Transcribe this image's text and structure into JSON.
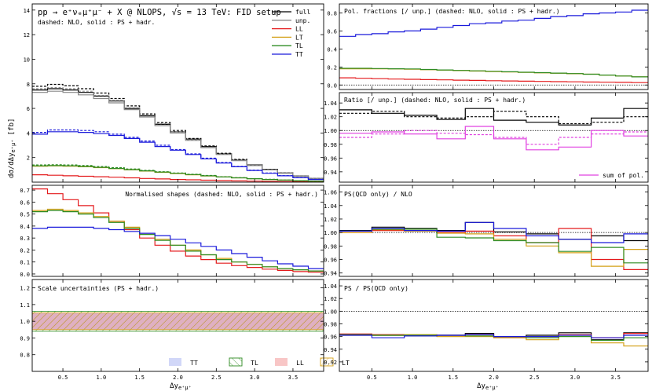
{
  "figure": {
    "y_main_label": "dσ/dΔy",
    "y_main_sub": "e⁺μ⁺",
    "y_main_unit": " [fb]",
    "x_label": "Δy",
    "x_sub": "e⁺μ⁺"
  },
  "colors": {
    "full": "#000000",
    "unp": "#888888",
    "LL": "#e41a1c",
    "LT": "#d4a017",
    "TL": "#2e8b22",
    "TT": "#1a1adb",
    "sum": "#e040e0"
  },
  "chart_data": [
    {
      "id": "main",
      "type": "line",
      "step": true,
      "title": "pp → e⁺νₑμ⁺μ⁻ + X @ NLOPS, √s = 13 TeV: FID setup",
      "subtitle": "dashed: NLO, solid : PS + hadr.",
      "xlim": [
        0.1,
        3.9
      ],
      "ylim": [
        0,
        14.5
      ],
      "yticks": [
        2,
        4,
        6,
        8,
        10,
        12,
        14
      ],
      "legend": [
        "full",
        "unp.",
        "LL",
        "LT",
        "TL",
        "TT"
      ],
      "x": [
        0.2,
        0.4,
        0.6,
        0.8,
        1.0,
        1.2,
        1.4,
        1.6,
        1.8,
        2.0,
        2.2,
        2.4,
        2.6,
        2.8,
        3.0,
        3.2,
        3.4,
        3.6,
        3.8
      ],
      "series": [
        {
          "name": "full solid",
          "key": "full",
          "dash": false,
          "values": [
            7.5,
            7.6,
            7.5,
            7.3,
            7.0,
            6.6,
            6.0,
            5.4,
            4.7,
            4.1,
            3.5,
            2.9,
            2.3,
            1.8,
            1.4,
            1.05,
            0.75,
            0.5,
            0.3
          ]
        },
        {
          "name": "full dashed",
          "key": "full",
          "dash": true,
          "values": [
            7.8,
            7.95,
            7.85,
            7.6,
            7.25,
            6.8,
            6.2,
            5.55,
            4.85,
            4.2,
            3.55,
            2.95,
            2.35,
            1.85,
            1.4,
            1.05,
            0.75,
            0.5,
            0.3
          ]
        },
        {
          "name": "unp. solid",
          "key": "unp",
          "dash": false,
          "values": [
            7.3,
            7.4,
            7.3,
            7.1,
            6.8,
            6.45,
            5.9,
            5.3,
            4.6,
            4.0,
            3.4,
            2.8,
            2.25,
            1.75,
            1.35,
            1.0,
            0.72,
            0.48,
            0.29
          ]
        },
        {
          "name": "unp. dashed",
          "key": "unp",
          "dash": true,
          "values": [
            7.6,
            7.7,
            7.6,
            7.4,
            7.05,
            6.65,
            6.05,
            5.45,
            4.75,
            4.1,
            3.45,
            2.85,
            2.28,
            1.78,
            1.37,
            1.02,
            0.73,
            0.48,
            0.29
          ]
        },
        {
          "name": "LL",
          "key": "LL",
          "dash": false,
          "values": [
            0.6,
            0.56,
            0.52,
            0.48,
            0.44,
            0.4,
            0.35,
            0.3,
            0.26,
            0.22,
            0.19,
            0.16,
            0.13,
            0.1,
            0.08,
            0.06,
            0.05,
            0.04,
            0.03
          ]
        },
        {
          "name": "LT",
          "key": "LT",
          "dash": false,
          "values": [
            1.3,
            1.32,
            1.3,
            1.25,
            1.18,
            1.1,
            1.0,
            0.9,
            0.8,
            0.7,
            0.6,
            0.5,
            0.42,
            0.35,
            0.28,
            0.22,
            0.17,
            0.12,
            0.08
          ]
        },
        {
          "name": "TL solid",
          "key": "TL",
          "dash": false,
          "values": [
            1.33,
            1.35,
            1.33,
            1.28,
            1.2,
            1.12,
            1.02,
            0.92,
            0.82,
            0.72,
            0.62,
            0.52,
            0.43,
            0.35,
            0.28,
            0.22,
            0.17,
            0.12,
            0.08
          ]
        },
        {
          "name": "TL dashed",
          "key": "TL",
          "dash": true,
          "values": [
            1.4,
            1.42,
            1.4,
            1.35,
            1.27,
            1.18,
            1.07,
            0.96,
            0.85,
            0.75,
            0.64,
            0.54,
            0.44,
            0.36,
            0.29,
            0.23,
            0.17,
            0.12,
            0.08
          ]
        },
        {
          "name": "TT solid",
          "key": "TT",
          "dash": false,
          "values": [
            3.9,
            4.1,
            4.1,
            4.05,
            3.95,
            3.8,
            3.55,
            3.25,
            2.9,
            2.6,
            2.25,
            1.9,
            1.55,
            1.25,
            0.95,
            0.72,
            0.52,
            0.36,
            0.22
          ]
        },
        {
          "name": "TT dashed",
          "key": "TT",
          "dash": true,
          "values": [
            4.05,
            4.25,
            4.25,
            4.2,
            4.1,
            3.9,
            3.65,
            3.35,
            3.0,
            2.65,
            2.3,
            1.95,
            1.6,
            1.28,
            0.98,
            0.74,
            0.53,
            0.37,
            0.23
          ]
        }
      ]
    },
    {
      "id": "norm",
      "type": "line",
      "step": true,
      "title": "Normalised shapes (dashed: NLO, solid : PS + hadr.)",
      "xlim": [
        0.1,
        3.9
      ],
      "ylim": [
        -0.02,
        0.74
      ],
      "yticks": [
        0.0,
        0.1,
        0.2,
        0.3,
        0.4,
        0.5,
        0.6,
        0.7
      ],
      "x": [
        0.2,
        0.4,
        0.6,
        0.8,
        1.0,
        1.2,
        1.4,
        1.6,
        1.8,
        2.0,
        2.2,
        2.4,
        2.6,
        2.8,
        3.0,
        3.2,
        3.4,
        3.6,
        3.8
      ],
      "series": [
        {
          "name": "LL",
          "key": "LL",
          "dash": false,
          "values": [
            0.71,
            0.67,
            0.62,
            0.57,
            0.51,
            0.44,
            0.37,
            0.3,
            0.24,
            0.19,
            0.15,
            0.12,
            0.09,
            0.07,
            0.055,
            0.04,
            0.03,
            0.02,
            0.015
          ]
        },
        {
          "name": "LT",
          "key": "LT",
          "dash": false,
          "values": [
            0.53,
            0.54,
            0.53,
            0.51,
            0.48,
            0.44,
            0.39,
            0.34,
            0.29,
            0.24,
            0.2,
            0.16,
            0.13,
            0.1,
            0.08,
            0.06,
            0.045,
            0.035,
            0.025
          ]
        },
        {
          "name": "TL",
          "key": "TL",
          "dash": false,
          "values": [
            0.52,
            0.53,
            0.52,
            0.5,
            0.47,
            0.43,
            0.38,
            0.33,
            0.28,
            0.24,
            0.19,
            0.16,
            0.12,
            0.1,
            0.08,
            0.06,
            0.045,
            0.035,
            0.025
          ]
        },
        {
          "name": "TT",
          "key": "TT",
          "dash": false,
          "values": [
            0.38,
            0.39,
            0.39,
            0.39,
            0.38,
            0.37,
            0.355,
            0.34,
            0.32,
            0.29,
            0.26,
            0.23,
            0.2,
            0.17,
            0.14,
            0.11,
            0.085,
            0.065,
            0.045
          ]
        }
      ]
    },
    {
      "id": "scale",
      "type": "area",
      "step": true,
      "title": "Scale uncertainties (PS + hadr.)",
      "xlim": [
        0.1,
        3.9
      ],
      "ylim": [
        0.7,
        1.25
      ],
      "yticks": [
        0.8,
        0.9,
        1.0,
        1.1,
        1.2
      ],
      "legend": [
        "TT",
        "TL",
        "LL",
        "LT"
      ],
      "bands": [
        {
          "key": "TT",
          "low": 0.95,
          "high": 1.05
        },
        {
          "key": "TL",
          "low": 0.94,
          "high": 1.06
        },
        {
          "key": "LL",
          "low": 0.95,
          "high": 1.05
        },
        {
          "key": "LT",
          "low": 0.95,
          "high": 1.05
        }
      ]
    },
    {
      "id": "fractions",
      "type": "line",
      "step": true,
      "title": "Pol. fractions [/ unp.]  (dashed: NLO, solid : PS + hadr.)",
      "xlim": [
        0.1,
        3.9
      ],
      "ylim": [
        -0.05,
        0.9
      ],
      "yticks": [
        0.0,
        0.2,
        0.4,
        0.6,
        0.8
      ],
      "x": [
        0.2,
        0.4,
        0.6,
        0.8,
        1.0,
        1.2,
        1.4,
        1.6,
        1.8,
        2.0,
        2.2,
        2.4,
        2.6,
        2.8,
        3.0,
        3.2,
        3.4,
        3.6,
        3.8
      ],
      "series": [
        {
          "name": "TT",
          "key": "TT",
          "dash": false,
          "values": [
            0.54,
            0.56,
            0.57,
            0.59,
            0.6,
            0.62,
            0.64,
            0.66,
            0.68,
            0.69,
            0.71,
            0.72,
            0.74,
            0.76,
            0.77,
            0.79,
            0.8,
            0.81,
            0.83
          ]
        },
        {
          "name": "LT",
          "key": "LT",
          "dash": false,
          "values": [
            0.18,
            0.18,
            0.18,
            0.178,
            0.175,
            0.17,
            0.165,
            0.16,
            0.155,
            0.15,
            0.145,
            0.14,
            0.135,
            0.13,
            0.125,
            0.12,
            0.11,
            0.1,
            0.09
          ]
        },
        {
          "name": "TL",
          "key": "TL",
          "dash": false,
          "values": [
            0.185,
            0.185,
            0.183,
            0.18,
            0.178,
            0.172,
            0.167,
            0.162,
            0.157,
            0.152,
            0.147,
            0.142,
            0.137,
            0.132,
            0.127,
            0.12,
            0.11,
            0.1,
            0.09
          ]
        },
        {
          "name": "LL",
          "key": "LL",
          "dash": false,
          "values": [
            0.08,
            0.075,
            0.07,
            0.066,
            0.063,
            0.06,
            0.057,
            0.054,
            0.051,
            0.048,
            0.045,
            0.042,
            0.04,
            0.037,
            0.035,
            0.033,
            0.031,
            0.029,
            0.027
          ]
        }
      ]
    },
    {
      "id": "ratio",
      "type": "line",
      "step": true,
      "title": "Ratio [/ unp.] (dashed: NLO, solid : PS + hadr.)",
      "xlim": [
        0.1,
        3.9
      ],
      "ylim": [
        0.925,
        1.055
      ],
      "yticks": [
        0.94,
        0.96,
        0.98,
        1.0,
        1.02,
        1.04
      ],
      "legend": [
        "sum of pol."
      ],
      "x": [
        0.3,
        0.7,
        1.1,
        1.5,
        1.8,
        2.2,
        2.6,
        3.0,
        3.4,
        3.8
      ],
      "series": [
        {
          "name": "full solid",
          "key": "full",
          "dash": false,
          "values": [
            1.03,
            1.025,
            1.022,
            1.016,
            1.032,
            1.015,
            1.012,
            1.008,
            1.018,
            1.032
          ]
        },
        {
          "name": "full dashed",
          "key": "full",
          "dash": true,
          "values": [
            1.025,
            1.028,
            1.02,
            1.018,
            1.02,
            1.028,
            1.02,
            1.01,
            1.012,
            1.02
          ]
        },
        {
          "name": "sum solid",
          "key": "sum",
          "dash": false,
          "values": [
            0.996,
            0.998,
            0.995,
            0.988,
            1.006,
            0.988,
            0.972,
            0.976,
            1.0,
            0.992
          ]
        },
        {
          "name": "sum dashed",
          "key": "sum",
          "dash": true,
          "values": [
            0.99,
            0.995,
            1.0,
            0.996,
            0.994,
            0.99,
            0.98,
            0.99,
            0.995,
            0.998
          ]
        }
      ]
    },
    {
      "id": "ps_qcd",
      "type": "line",
      "step": true,
      "title": "PS(QCD only) / NLO",
      "xlim": [
        0.1,
        3.9
      ],
      "ylim": [
        0.935,
        1.07
      ],
      "yticks": [
        0.94,
        0.96,
        0.98,
        1.0,
        1.02,
        1.04,
        1.06
      ],
      "x": [
        0.3,
        0.7,
        1.1,
        1.5,
        1.8,
        2.2,
        2.6,
        3.0,
        3.4,
        3.8
      ],
      "series": [
        {
          "name": "full",
          "key": "full",
          "dash": false,
          "values": [
            1.003,
            1.008,
            1.006,
            1.003,
            1.015,
            1.001,
            0.998,
            0.99,
            0.995,
            0.988
          ]
        },
        {
          "name": "LL",
          "key": "LL",
          "dash": false,
          "values": [
            1.0,
            1.003,
            1.002,
            1.0,
            1.002,
            0.995,
            0.985,
            1.006,
            0.96,
            0.945
          ]
        },
        {
          "name": "LT",
          "key": "LT",
          "dash": false,
          "values": [
            1.0,
            1.004,
            1.002,
            0.999,
            0.998,
            0.99,
            0.98,
            0.97,
            0.95,
            0.975
          ]
        },
        {
          "name": "TL",
          "key": "TL",
          "dash": false,
          "values": [
            1.002,
            1.005,
            1.005,
            0.993,
            0.992,
            0.988,
            0.985,
            0.972,
            0.978,
            0.955
          ]
        },
        {
          "name": "TT",
          "key": "TT",
          "dash": false,
          "values": [
            1.002,
            1.006,
            1.003,
            1.002,
            1.015,
            1.006,
            0.995,
            0.99,
            0.985,
            0.998
          ]
        }
      ]
    },
    {
      "id": "ps_ratio",
      "type": "line",
      "step": true,
      "title": "PS / PS(QCD only)",
      "xlim": [
        0.1,
        3.9
      ],
      "ylim": [
        0.905,
        1.05
      ],
      "yticks": [
        0.92,
        0.94,
        0.96,
        0.98,
        1.0,
        1.02,
        1.04
      ],
      "x": [
        0.3,
        0.7,
        1.1,
        1.5,
        1.8,
        2.2,
        2.6,
        3.0,
        3.4,
        3.8
      ],
      "series": [
        {
          "name": "full",
          "key": "full",
          "dash": false,
          "values": [
            0.963,
            0.962,
            0.961,
            0.962,
            0.965,
            0.96,
            0.962,
            0.966,
            0.955,
            0.966
          ]
        },
        {
          "name": "LL",
          "key": "LL",
          "dash": false,
          "values": [
            0.964,
            0.963,
            0.962,
            0.962,
            0.963,
            0.958,
            0.96,
            0.963,
            0.958,
            0.965
          ]
        },
        {
          "name": "LT",
          "key": "LT",
          "dash": false,
          "values": [
            0.962,
            0.962,
            0.963,
            0.96,
            0.96,
            0.958,
            0.955,
            0.962,
            0.95,
            0.945
          ]
        },
        {
          "name": "TL",
          "key": "TL",
          "dash": false,
          "values": [
            0.963,
            0.962,
            0.962,
            0.962,
            0.961,
            0.96,
            0.958,
            0.96,
            0.954,
            0.958
          ]
        },
        {
          "name": "TT",
          "key": "TT",
          "dash": false,
          "values": [
            0.962,
            0.958,
            0.961,
            0.962,
            0.963,
            0.96,
            0.96,
            0.962,
            0.958,
            0.962
          ]
        }
      ]
    }
  ],
  "xticks": [
    0.5,
    1.0,
    1.5,
    2.0,
    2.5,
    3.0,
    3.5
  ]
}
